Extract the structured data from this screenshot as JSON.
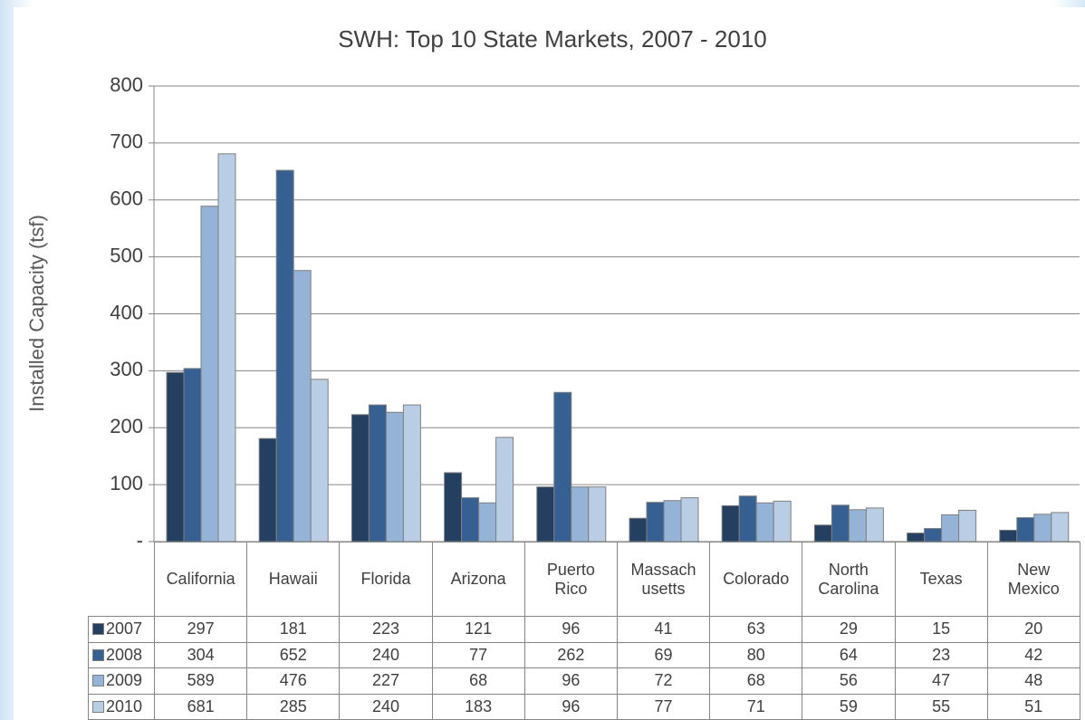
{
  "chart_data": {
    "type": "bar",
    "title": "SWH: Top 10 State Markets, 2007 - 2010",
    "y_label": "Installed Capacity (tsf)",
    "categories": [
      "California",
      "Hawaii",
      "Florida",
      "Arizona",
      "Puerto\nRico",
      "Massach\nusetts",
      "Colorado",
      "North\nCarolina",
      "Texas",
      "New\nMexico"
    ],
    "series": [
      {
        "name": "2007",
        "color": "#243f60",
        "values": [
          297,
          181,
          223,
          121,
          96,
          41,
          63,
          29,
          15,
          20
        ]
      },
      {
        "name": "2008",
        "color": "#376092",
        "values": [
          304,
          652,
          240,
          77,
          262,
          69,
          80,
          64,
          23,
          42
        ]
      },
      {
        "name": "2009",
        "color": "#95b3d7",
        "values": [
          589,
          476,
          227,
          68,
          96,
          72,
          68,
          56,
          47,
          48
        ]
      },
      {
        "name": "2010",
        "color": "#b9cde5",
        "values": [
          681,
          285,
          240,
          183,
          96,
          77,
          71,
          59,
          55,
          51
        ]
      }
    ],
    "ylim": [
      0,
      800
    ],
    "yticks": [
      {
        "value": 0,
        "label": "-"
      },
      100,
      200,
      300,
      400,
      500,
      600,
      700,
      800
    ],
    "grid": true,
    "data_table": true
  }
}
